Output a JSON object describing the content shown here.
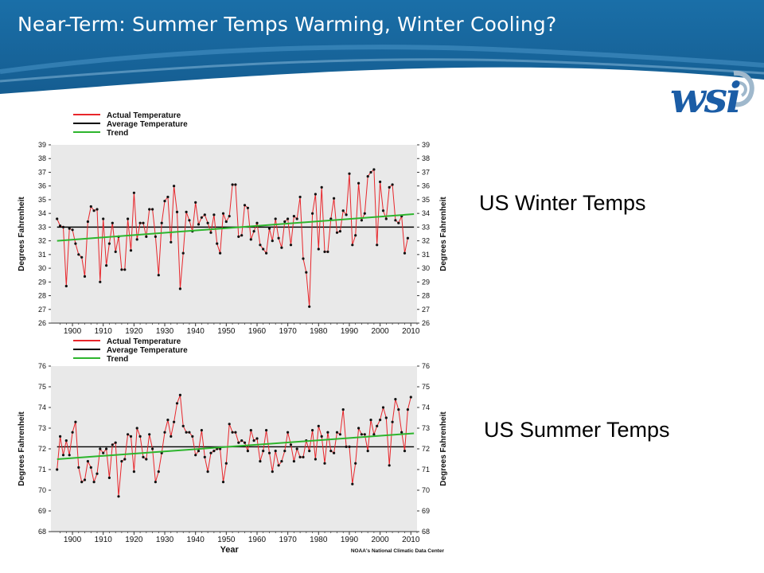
{
  "slide": {
    "title": "Near-Term:  Summer Temps Warming, Winter Cooling?",
    "logo_text": "wsi",
    "colors": {
      "banner": "#1a6fa8",
      "banner_light": "#4a96c8",
      "logo": "#1b5da6"
    }
  },
  "labels": {
    "winter": "US Winter Temps",
    "summer": "US Summer Temps"
  },
  "chart_data": [
    {
      "type": "line",
      "legend": [
        "Actual Temperature",
        "Average Temperature",
        "Trend"
      ],
      "ylabel": "Degrees Fahrenheit",
      "xlabel": "",
      "ylim": [
        26,
        39
      ],
      "xlim": [
        1893,
        2012
      ],
      "yticks": [
        26,
        27,
        28,
        29,
        30,
        31,
        32,
        33,
        34,
        35,
        36,
        37,
        38,
        39
      ],
      "xticks": [
        1900,
        1910,
        1920,
        1930,
        1940,
        1950,
        1960,
        1970,
        1980,
        1990,
        2000,
        2010
      ],
      "average": 33.0,
      "trend": [
        [
          1895,
          32.0
        ],
        [
          2011,
          33.95
        ]
      ],
      "colors": {
        "actual": "#e8262b",
        "average": "#000000",
        "trend": "#2db52d",
        "plot_bg": "#e9e9e9"
      },
      "x_start": 1895,
      "values": [
        33.6,
        33.1,
        33.0,
        28.7,
        32.9,
        32.8,
        31.8,
        31.0,
        30.8,
        29.4,
        33.4,
        34.5,
        34.2,
        34.3,
        29.0,
        33.6,
        30.2,
        31.8,
        33.3,
        31.2,
        32.3,
        29.9,
        29.9,
        33.6,
        31.3,
        35.5,
        32.1,
        33.3,
        33.3,
        32.3,
        34.3,
        34.3,
        32.3,
        29.5,
        33.3,
        34.9,
        35.2,
        31.9,
        36.0,
        34.1,
        28.5,
        31.1,
        34.1,
        33.5,
        32.7,
        34.8,
        33.2,
        33.7,
        33.9,
        33.3,
        32.6,
        33.9,
        31.8,
        31.1,
        34.0,
        33.4,
        33.8,
        36.1,
        36.1,
        32.3,
        32.4,
        34.6,
        34.4,
        32.1,
        32.7,
        33.3,
        31.7,
        31.4,
        31.1,
        32.9,
        32.0,
        33.6,
        32.2,
        31.5,
        33.4,
        33.6,
        31.7,
        33.8,
        33.6,
        35.2,
        30.7,
        29.7,
        27.2,
        34.0,
        35.4,
        31.4,
        35.9,
        31.2,
        31.2,
        33.6,
        35.1,
        32.6,
        32.7,
        34.2,
        33.9,
        36.9,
        31.7,
        32.4,
        36.2,
        33.5,
        34.0,
        36.7,
        37.0,
        37.2,
        31.7,
        36.3,
        34.2,
        33.6,
        35.9,
        36.1,
        33.5,
        33.3,
        33.8,
        31.1,
        32.2
      ]
    },
    {
      "type": "line",
      "legend": [
        "Actual Temperature",
        "Average Temperature",
        "Trend"
      ],
      "ylabel": "Degrees Fahrenheit",
      "xlabel": "Year",
      "source": "NOAA's National Climatic Data Center",
      "ylim": [
        68,
        76
      ],
      "xlim": [
        1893,
        2012
      ],
      "yticks": [
        68,
        69,
        70,
        71,
        72,
        73,
        74,
        75,
        76
      ],
      "xticks": [
        1900,
        1910,
        1920,
        1930,
        1940,
        1950,
        1960,
        1970,
        1980,
        1990,
        2000,
        2010
      ],
      "average": 72.1,
      "trend": [
        [
          1895,
          71.5
        ],
        [
          2011,
          72.75
        ]
      ],
      "colors": {
        "actual": "#e8262b",
        "average": "#000000",
        "trend": "#2db52d",
        "plot_bg": "#e9e9e9"
      },
      "x_start": 1895,
      "values": [
        71.0,
        72.6,
        71.7,
        72.4,
        71.7,
        72.8,
        73.3,
        71.1,
        70.4,
        70.5,
        71.4,
        71.1,
        70.4,
        70.8,
        72.0,
        71.8,
        72.0,
        70.6,
        72.2,
        72.3,
        69.7,
        71.4,
        71.5,
        72.7,
        72.6,
        70.9,
        73.0,
        72.6,
        71.6,
        71.5,
        72.7,
        72.0,
        70.4,
        70.9,
        71.8,
        72.8,
        73.4,
        72.6,
        73.3,
        74.2,
        74.6,
        73.1,
        72.8,
        72.8,
        72.6,
        71.7,
        71.9,
        72.9,
        71.6,
        70.9,
        71.8,
        71.9,
        72.0,
        72.0,
        70.4,
        71.3,
        73.2,
        72.8,
        72.8,
        72.3,
        72.4,
        72.3,
        71.9,
        72.9,
        72.4,
        72.5,
        71.4,
        71.9,
        72.9,
        71.8,
        70.9,
        71.9,
        71.2,
        71.4,
        71.9,
        72.8,
        72.2,
        71.4,
        72.0,
        71.6,
        71.6,
        72.4,
        71.9,
        72.9,
        71.5,
        73.1,
        72.6,
        71.3,
        72.8,
        71.9,
        71.8,
        72.8,
        72.7,
        73.9,
        72.1,
        72.1,
        70.3,
        71.3,
        73.0,
        72.7,
        72.7,
        71.9,
        73.4,
        72.7,
        73.1,
        73.4,
        74.0,
        73.5,
        71.2,
        73.3,
        74.4,
        73.9,
        72.8,
        71.9,
        73.9,
        74.5
      ]
    }
  ]
}
